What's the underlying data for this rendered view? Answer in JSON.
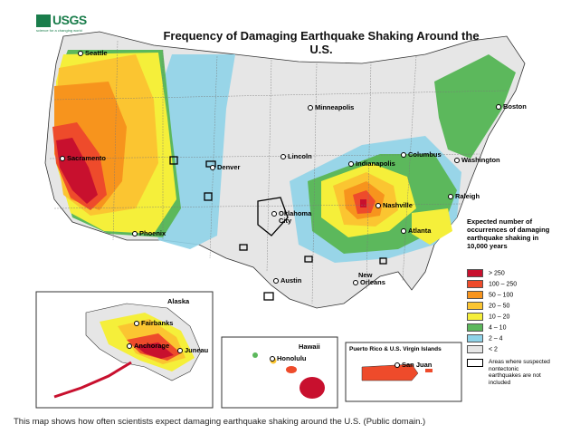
{
  "header": {
    "logo_text": "USGS",
    "logo_tagline": "science for a changing world",
    "title": "Frequency of Damaging Earthquake Shaking Around the U.S."
  },
  "cities": {
    "seattle": "Seattle",
    "sacramento": "Sacramento",
    "phoenix": "Phoenix",
    "denver": "Denver",
    "minneapolis": "Minneapolis",
    "lincoln": "Lincoln",
    "oklahoma_city_line1": "Oklahoma",
    "oklahoma_city_line2": "City",
    "austin": "Austin",
    "new_orleans_line1": "New",
    "new_orleans_line2": "Orleans",
    "indianapolis": "Indianapolis",
    "columbus": "Columbus",
    "nashville": "Nashville",
    "atlanta": "Atlanta",
    "raleigh": "Raleigh",
    "washington": "Washington",
    "boston": "Boston"
  },
  "insets": {
    "alaska": {
      "title": "Alaska",
      "fairbanks": "Fairbanks",
      "anchorage": "Anchorage",
      "juneau": "Juneau"
    },
    "hawaii": {
      "title": "Hawaii",
      "honolulu": "Honolulu"
    },
    "puerto_rico": {
      "title": "Puerto Rico & U.S. Virgin Islands",
      "san_juan": "San Juan"
    }
  },
  "legend": {
    "title": "Expected number of occurrences of damaging earthquake shaking in 10,000 years",
    "items": [
      {
        "label": "> 250",
        "color": "#c8102e"
      },
      {
        "label": "100 – 250",
        "color": "#ee4b2b"
      },
      {
        "label": "50 – 100",
        "color": "#f7941d"
      },
      {
        "label": "20 – 50",
        "color": "#fbc531"
      },
      {
        "label": "10 – 20",
        "color": "#f5ef3a"
      },
      {
        "label": "4 – 10",
        "color": "#5cb85c"
      },
      {
        "label": "2 – 4",
        "color": "#8fd3e8"
      },
      {
        "label": "< 2",
        "color": "#e6e6e6"
      }
    ],
    "note": "Areas where suspected nontectonic earthquakes are not included"
  },
  "caption": "This map shows how often scientists expect damaging earthquake shaking around the U.S. (Public domain.)"
}
